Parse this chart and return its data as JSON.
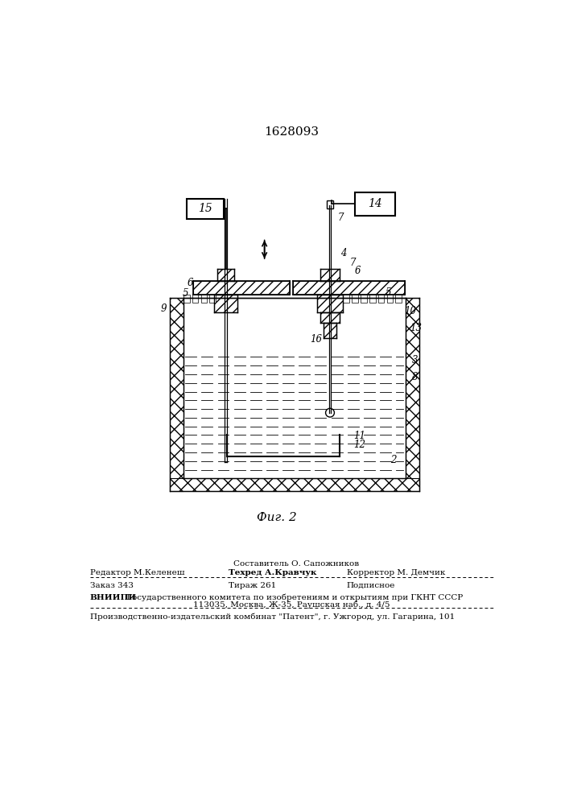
{
  "patent_number": "1628093",
  "figure_label": "Фиг. 2",
  "bg_color": "#ffffff",
  "composer_line": "Составитель О. Сапожников",
  "editor": "Редактор М.Келенеш",
  "tehred": "Техред А.Кравчук",
  "korrektor": "Корректор М. Демчик",
  "zakaz": "Заказ 343",
  "tirazh": "Тираж 261",
  "podpisnoe": "Подписное",
  "vniipи_line1": "ВНИИПИ Государственного комитета по изобретениям и открытиям при ГКНТ СССР",
  "vniipи_line2": "113035, Москва, Ж-35, Раушская наб., д. 4/5",
  "production_line": "Производственно-издательский комбинат \"Патент\", г. Ужгород, ул. Гагарина, 101"
}
